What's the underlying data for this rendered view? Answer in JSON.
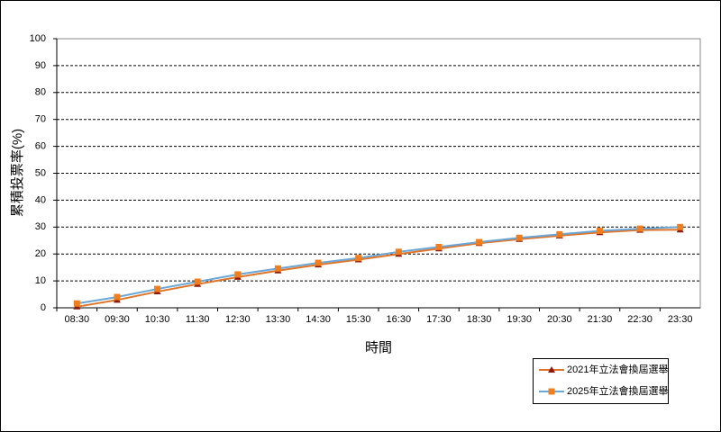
{
  "chart_data": {
    "type": "line",
    "ylabel": "累積投票率(%)",
    "xlabel": "時間",
    "categories": [
      "08:30",
      "09:30",
      "10:30",
      "11:30",
      "12:30",
      "13:30",
      "14:30",
      "15:30",
      "16:30",
      "17:30",
      "18:30",
      "19:30",
      "20:30",
      "21:30",
      "22:30",
      "23:30"
    ],
    "series": [
      {
        "name": "2021年立法會換屆選舉",
        "color": "#e07428",
        "marker_color": "#8b1a10",
        "marker": "triangle",
        "values": [
          0.4,
          2.9,
          6.0,
          8.8,
          11.4,
          13.8,
          16.0,
          17.9,
          20.0,
          22.0,
          24.0,
          25.5,
          26.8,
          28.0,
          28.9,
          29.0
        ]
      },
      {
        "name": "2025年立法會換屆選舉",
        "color": "#6aa6d6",
        "marker_color": "#f07d1e",
        "marker": "square",
        "values": [
          1.6,
          4.0,
          7.0,
          9.7,
          12.4,
          14.6,
          16.7,
          18.5,
          20.8,
          22.6,
          24.4,
          26.0,
          27.3,
          28.6,
          29.4,
          30.0
        ]
      }
    ],
    "ylim": [
      0,
      100
    ],
    "yticks": [
      0,
      10,
      20,
      30,
      40,
      50,
      60,
      70,
      80,
      90,
      100
    ],
    "grid": true,
    "legend": "bottom-right"
  }
}
